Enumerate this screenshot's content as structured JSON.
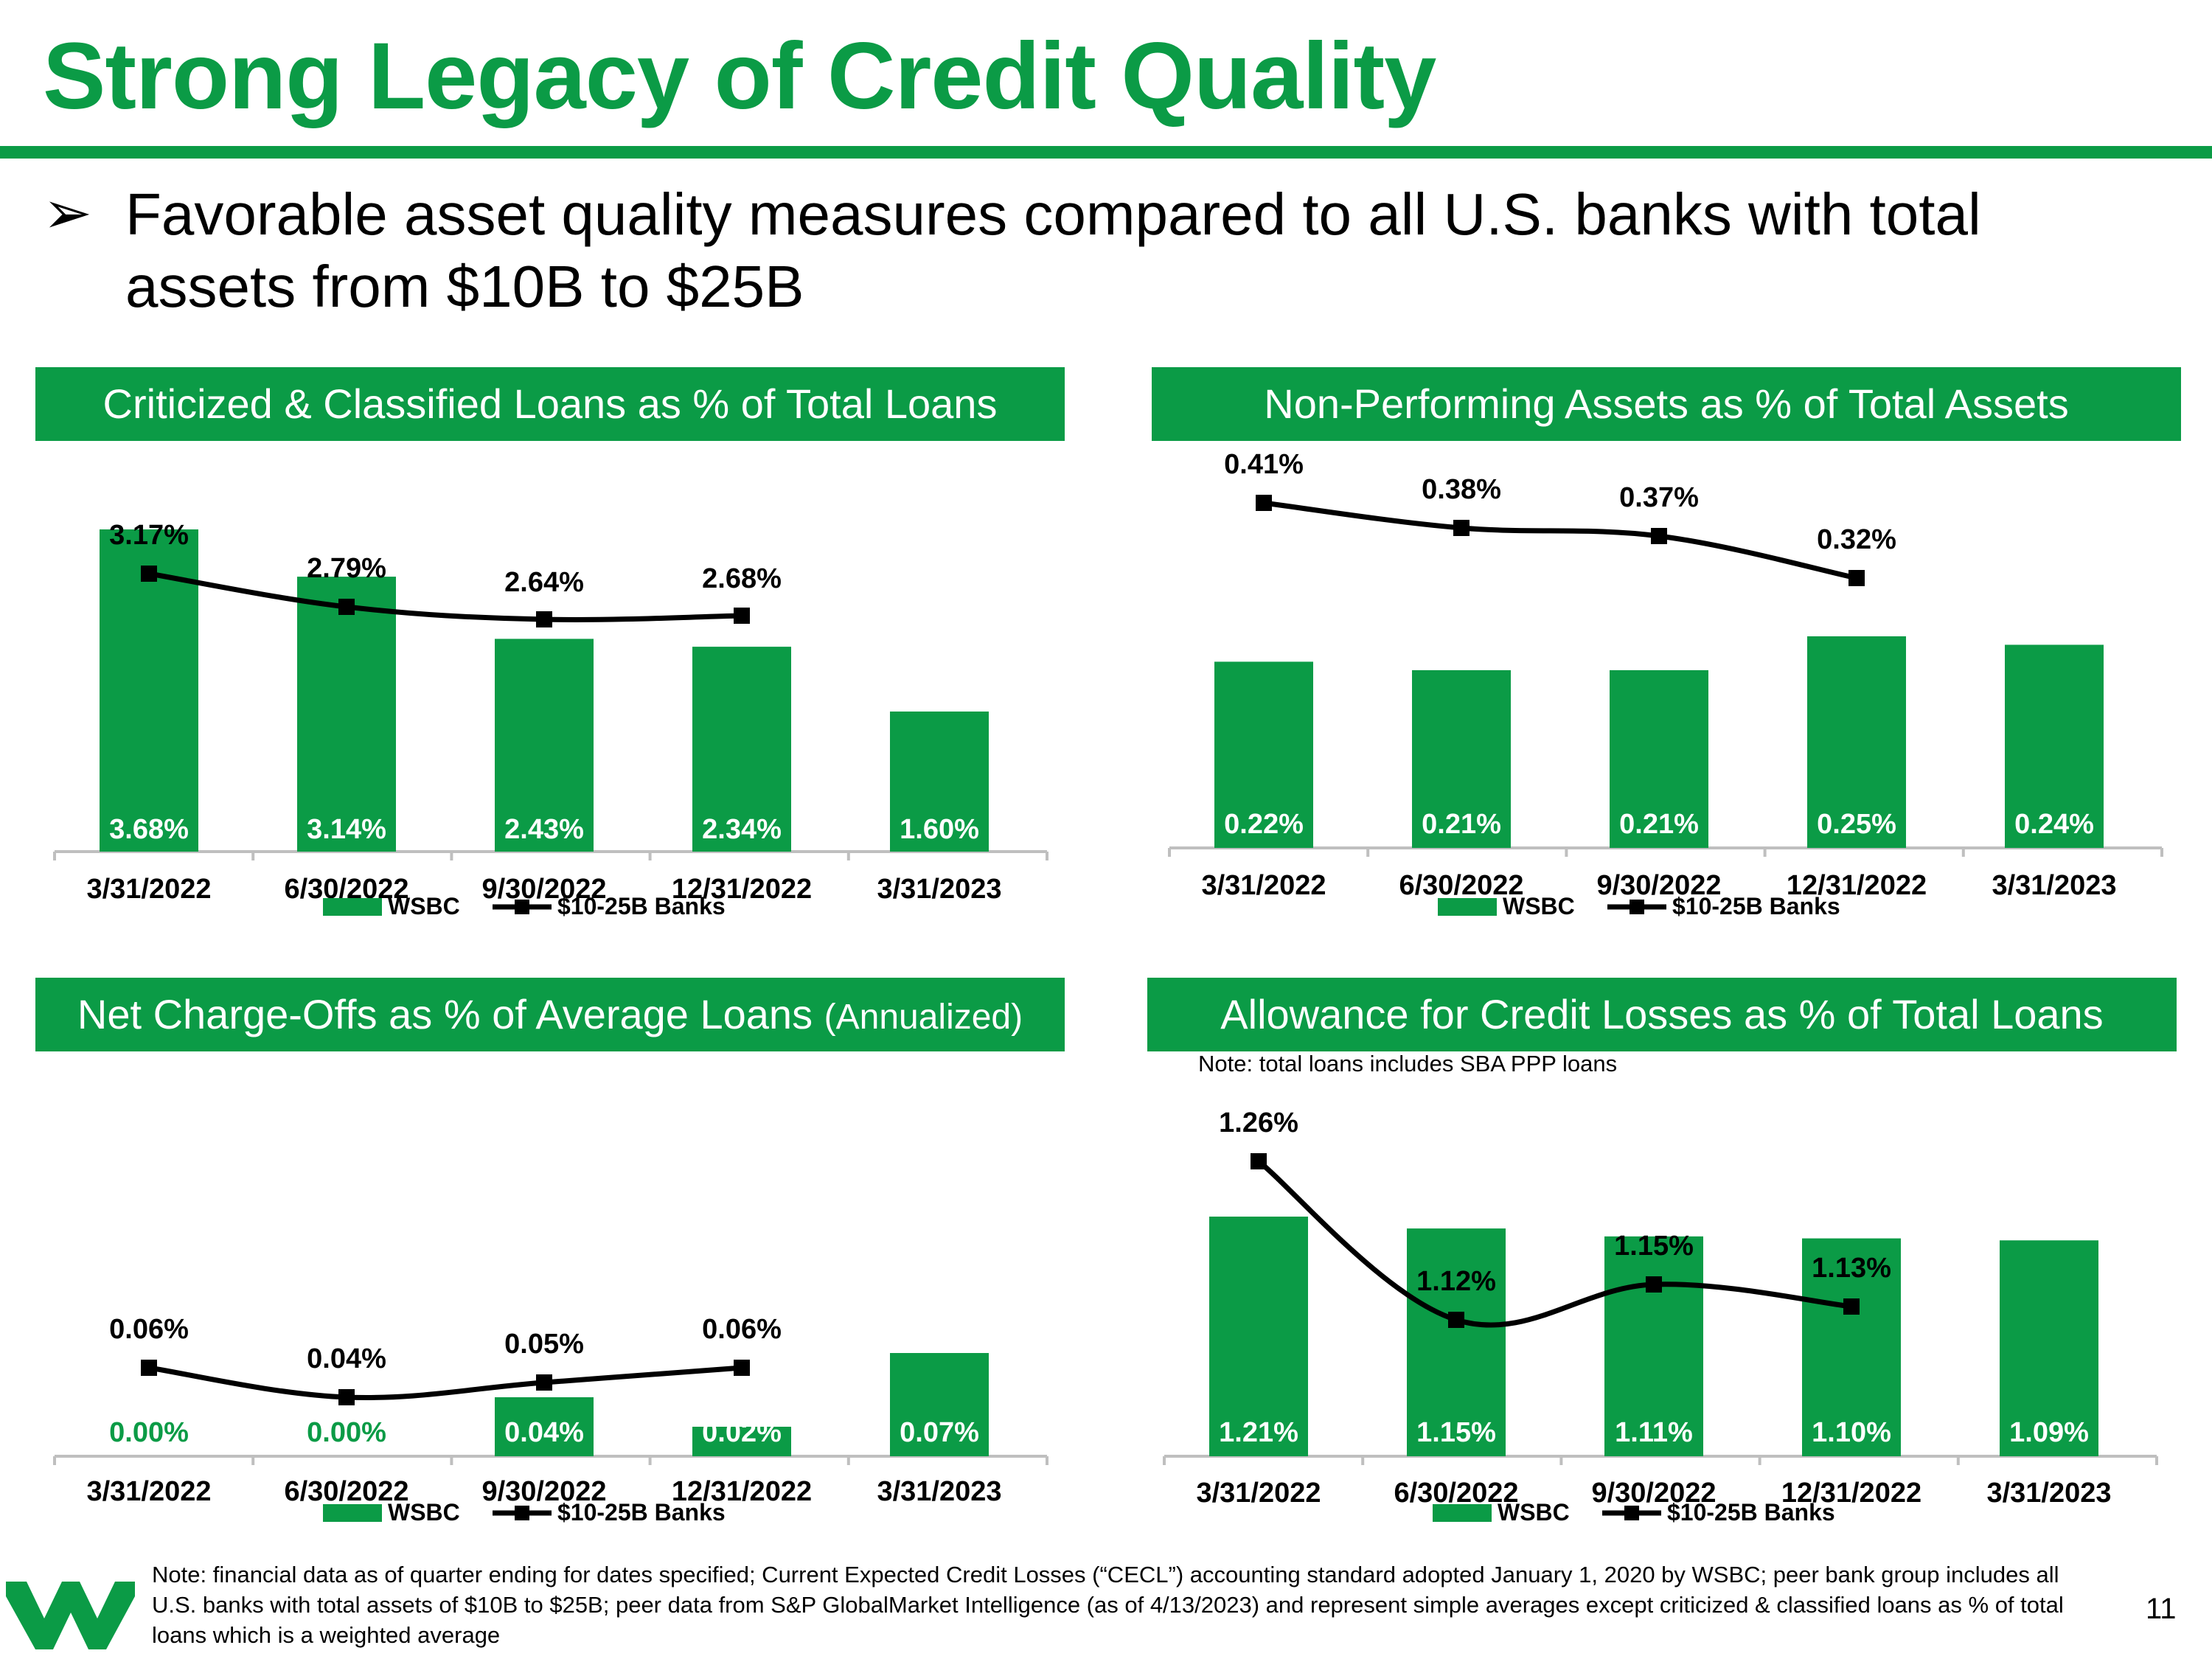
{
  "slide": {
    "title": "Strong Legacy of Credit Quality",
    "bullet": "Favorable asset quality measures compared to all U.S. banks with total assets from $10B to $25B",
    "bullet_icon": "arrow-bullet-icon",
    "note_acl": "Note: total loans includes SBA PPP loans",
    "footnote": "Note: financial data as of quarter ending for dates specified; Current Expected Credit Losses (“CECL”) accounting standard adopted January 1, 2020 by WSBC; peer bank group includes all U.S. banks with total assets of $10B to $25B; peer data from S&P GlobalMarket Intelligence (as of 4/13/2023) and represent simple averages except criticized & classified loans as % of total loans which is a weighted average",
    "page_number": "11",
    "logo_icon": "wesbanco-logo-icon",
    "colors": {
      "brand": "#0b9b46",
      "line": "#000000"
    }
  },
  "panels": [
    {
      "title": "Criticized & Classified Loans as % of Total Loans",
      "title_suffix": ""
    },
    {
      "title": "Non-Performing Assets as % of Total Assets",
      "title_suffix": ""
    },
    {
      "title": "Net Charge-Offs as % of Average Loans",
      "title_suffix": "(Annualized)"
    },
    {
      "title": "Allowance for Credit Losses as % of Total Loans",
      "title_suffix": ""
    }
  ],
  "chart_data": [
    {
      "type": "bar",
      "title": "Criticized & Classified Loans as % of Total Loans",
      "categories": [
        "3/31/2022",
        "6/30/2022",
        "9/30/2022",
        "12/31/2022",
        "3/31/2023"
      ],
      "series": [
        {
          "name": "WSBC",
          "type": "bar",
          "values": [
            3.68,
            3.14,
            2.43,
            2.34,
            1.6
          ],
          "labels": [
            "3.68%",
            "3.14%",
            "2.43%",
            "2.34%",
            "1.60%"
          ]
        },
        {
          "name": "$10-25B Banks",
          "type": "line",
          "values": [
            3.17,
            2.79,
            2.64,
            2.68,
            null
          ],
          "labels": [
            "3.17%",
            "2.79%",
            "2.64%",
            "2.68%",
            null
          ]
        }
      ],
      "legend": "bottom",
      "grid": false
    },
    {
      "type": "bar",
      "title": "Non-Performing Assets as % of Total Assets",
      "categories": [
        "3/31/2022",
        "6/30/2022",
        "9/30/2022",
        "12/31/2022",
        "3/31/2023"
      ],
      "series": [
        {
          "name": "WSBC",
          "type": "bar",
          "values": [
            0.22,
            0.21,
            0.21,
            0.25,
            0.24
          ],
          "labels": [
            "0.22%",
            "0.21%",
            "0.21%",
            "0.25%",
            "0.24%"
          ]
        },
        {
          "name": "$10-25B Banks",
          "type": "line",
          "values": [
            0.41,
            0.38,
            0.37,
            0.32,
            null
          ],
          "labels": [
            "0.41%",
            "0.38%",
            "0.37%",
            "0.32%",
            null
          ]
        }
      ],
      "legend": "bottom",
      "grid": false
    },
    {
      "type": "bar",
      "title": "Net Charge-Offs as % of Average Loans (Annualized)",
      "categories": [
        "3/31/2022",
        "6/30/2022",
        "9/30/2022",
        "12/31/2022",
        "3/31/2023"
      ],
      "series": [
        {
          "name": "WSBC",
          "type": "bar",
          "values": [
            0.0,
            0.0,
            0.04,
            0.02,
            0.07
          ],
          "labels": [
            "0.00%",
            "0.00%",
            "0.04%",
            "0.02%",
            "0.07%"
          ]
        },
        {
          "name": "$10-25B Banks",
          "type": "line",
          "values": [
            0.06,
            0.04,
            0.05,
            0.06,
            null
          ],
          "labels": [
            "0.06%",
            "0.04%",
            "0.05%",
            "0.06%",
            null
          ]
        }
      ],
      "legend": "bottom",
      "grid": false
    },
    {
      "type": "bar",
      "title": "Allowance for Credit Losses as % of Total Loans",
      "categories": [
        "3/31/2022",
        "6/30/2022",
        "9/30/2022",
        "12/31/2022",
        "3/31/2023"
      ],
      "series": [
        {
          "name": "WSBC",
          "type": "bar",
          "values": [
            1.21,
            1.15,
            1.11,
            1.1,
            1.09
          ],
          "labels": [
            "1.21%",
            "1.15%",
            "1.11%",
            "1.10%",
            "1.09%"
          ]
        },
        {
          "name": "$10-25B Banks",
          "type": "line",
          "values": [
            1.26,
            1.12,
            1.15,
            1.13,
            null
          ],
          "labels": [
            "1.26%",
            "1.12%",
            "1.15%",
            "1.13%",
            null
          ]
        }
      ],
      "legend": "bottom",
      "grid": false
    }
  ]
}
